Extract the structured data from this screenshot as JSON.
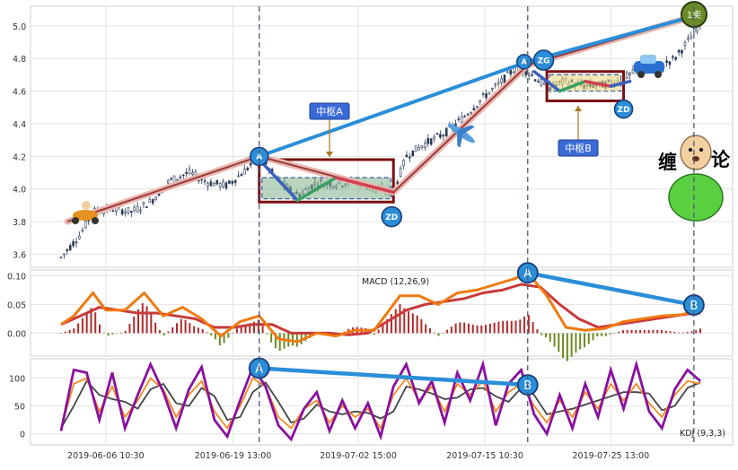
{
  "chart_data": {
    "type": "candlestick-with-indicators",
    "x_ticks": [
      "2019-06-06 10:30",
      "2019-06-19 13:00",
      "2019-07-02 15:00",
      "2019-07-15 10:30",
      "2019-07-25 13:00"
    ],
    "price_panel": {
      "ylim": [
        3.52,
        5.12
      ],
      "yticks": [
        "3.6",
        "3.8",
        "4.0",
        "4.2",
        "4.4",
        "4.6",
        "4.8",
        "5.0"
      ],
      "price_path": [
        [
          0,
          3.58
        ],
        [
          0.03,
          3.72
        ],
        [
          0.05,
          3.86
        ],
        [
          0.08,
          3.88
        ],
        [
          0.11,
          3.86
        ],
        [
          0.14,
          3.92
        ],
        [
          0.17,
          4.05
        ],
        [
          0.2,
          4.1
        ],
        [
          0.23,
          4.04
        ],
        [
          0.26,
          4.02
        ],
        [
          0.29,
          4.12
        ],
        [
          0.31,
          4.2
        ],
        [
          0.34,
          4.05
        ],
        [
          0.37,
          3.96
        ],
        [
          0.4,
          4.04
        ],
        [
          0.43,
          4.03
        ],
        [
          0.46,
          4.05
        ],
        [
          0.49,
          4.0
        ],
        [
          0.52,
          3.98
        ],
        [
          0.54,
          4.2
        ],
        [
          0.57,
          4.28
        ],
        [
          0.6,
          4.34
        ],
        [
          0.63,
          4.44
        ],
        [
          0.66,
          4.56
        ],
        [
          0.69,
          4.66
        ],
        [
          0.71,
          4.74
        ],
        [
          0.73,
          4.72
        ],
        [
          0.76,
          4.62
        ],
        [
          0.79,
          4.66
        ],
        [
          0.82,
          4.63
        ],
        [
          0.85,
          4.64
        ],
        [
          0.87,
          4.66
        ],
        [
          0.9,
          4.72
        ],
        [
          0.93,
          4.74
        ],
        [
          0.96,
          4.8
        ],
        [
          0.98,
          4.9
        ],
        [
          1.0,
          5.02
        ]
      ],
      "trend_line": [
        [
          0.01,
          3.8
        ],
        [
          0.31,
          4.2
        ],
        [
          0.52,
          3.98
        ],
        [
          0.73,
          4.76
        ],
        [
          1.0,
          5.07
        ]
      ],
      "upper_line": [
        [
          0.31,
          4.2
        ],
        [
          0.73,
          4.78
        ],
        [
          1.0,
          5.07
        ]
      ],
      "strokes": [
        [
          [
            0.31,
            4.18
          ],
          [
            0.37,
            3.93
          ],
          [
            0.43,
            4.07
          ],
          [
            0.52,
            3.98
          ]
        ],
        [
          [
            0.74,
            4.72
          ],
          [
            0.78,
            4.6
          ],
          [
            0.82,
            4.66
          ],
          [
            0.86,
            4.63
          ],
          [
            0.89,
            4.66
          ]
        ]
      ],
      "zone_a": {
        "x": [
          0.31,
          0.52
        ],
        "y": [
          3.94,
          4.07
        ],
        "outer_y": [
          3.92,
          4.18
        ]
      },
      "zone_b": {
        "x": [
          0.76,
          0.88
        ],
        "y": [
          4.6,
          4.7
        ],
        "outer_y": [
          4.54,
          4.72
        ]
      },
      "annotations": {
        "zhongshu_a": "中枢A",
        "zhongshu_b": "中枢B",
        "zd": "ZD",
        "zg": "ZG",
        "a": "A",
        "sell": "1卖",
        "chan_left": "缠",
        "chan_right": "论"
      }
    },
    "macd_panel": {
      "label": "MACD (12,26,9)",
      "ylim": [
        -0.04,
        0.11
      ],
      "yticks": [
        "0.10",
        "0.05",
        "0.00"
      ],
      "dif": [
        [
          0,
          0.015
        ],
        [
          0.02,
          0.03
        ],
        [
          0.05,
          0.07
        ],
        [
          0.07,
          0.04
        ],
        [
          0.1,
          0.04
        ],
        [
          0.13,
          0.07
        ],
        [
          0.16,
          0.03
        ],
        [
          0.19,
          0.045
        ],
        [
          0.22,
          0.025
        ],
        [
          0.25,
          -0.005
        ],
        [
          0.28,
          0.02
        ],
        [
          0.31,
          0.03
        ],
        [
          0.34,
          -0.01
        ],
        [
          0.37,
          -0.015
        ],
        [
          0.4,
          0.0
        ],
        [
          0.43,
          -0.005
        ],
        [
          0.46,
          0.005
        ],
        [
          0.49,
          0.005
        ],
        [
          0.53,
          0.065
        ],
        [
          0.56,
          0.065
        ],
        [
          0.59,
          0.05
        ],
        [
          0.62,
          0.07
        ],
        [
          0.65,
          0.075
        ],
        [
          0.68,
          0.085
        ],
        [
          0.71,
          0.095
        ],
        [
          0.73,
          0.105
        ],
        [
          0.76,
          0.065
        ],
        [
          0.79,
          0.01
        ],
        [
          0.82,
          0.005
        ],
        [
          0.85,
          0.008
        ],
        [
          0.88,
          0.02
        ],
        [
          0.91,
          0.025
        ],
        [
          0.94,
          0.03
        ],
        [
          0.97,
          0.032
        ],
        [
          1.0,
          0.04
        ]
      ],
      "dea": [
        [
          0,
          0.015
        ],
        [
          0.03,
          0.03
        ],
        [
          0.06,
          0.045
        ],
        [
          0.09,
          0.04
        ],
        [
          0.12,
          0.035
        ],
        [
          0.15,
          0.035
        ],
        [
          0.18,
          0.03
        ],
        [
          0.21,
          0.025
        ],
        [
          0.24,
          0.01
        ],
        [
          0.27,
          0.01
        ],
        [
          0.3,
          0.015
        ],
        [
          0.33,
          0.015
        ],
        [
          0.36,
          0.0
        ],
        [
          0.39,
          0.0
        ],
        [
          0.42,
          0.0
        ],
        [
          0.45,
          -0.003
        ],
        [
          0.48,
          0.0
        ],
        [
          0.51,
          0.02
        ],
        [
          0.54,
          0.04
        ],
        [
          0.57,
          0.05
        ],
        [
          0.6,
          0.055
        ],
        [
          0.63,
          0.06
        ],
        [
          0.66,
          0.07
        ],
        [
          0.69,
          0.075
        ],
        [
          0.72,
          0.085
        ],
        [
          0.75,
          0.08
        ],
        [
          0.78,
          0.05
        ],
        [
          0.81,
          0.025
        ],
        [
          0.84,
          0.01
        ],
        [
          0.87,
          0.015
        ],
        [
          0.9,
          0.02
        ],
        [
          0.93,
          0.025
        ],
        [
          0.96,
          0.03
        ],
        [
          0.99,
          0.035
        ],
        [
          1.0,
          0.035
        ]
      ],
      "divergence": {
        "a_label": "A",
        "b_label": "B",
        "a": [
          0.73,
          0.105
        ],
        "b": [
          0.99,
          0.049
        ]
      }
    },
    "kdj_panel": {
      "label": "KDJ (9,3,3)",
      "ylim": [
        -20,
        135
      ],
      "yticks": [
        "100",
        "50",
        "0"
      ],
      "k": [
        [
          0,
          10
        ],
        [
          0.02,
          90
        ],
        [
          0.04,
          100
        ],
        [
          0.06,
          40
        ],
        [
          0.08,
          85
        ],
        [
          0.1,
          30
        ],
        [
          0.12,
          60
        ],
        [
          0.14,
          100
        ],
        [
          0.16,
          80
        ],
        [
          0.18,
          30
        ],
        [
          0.2,
          70
        ],
        [
          0.22,
          95
        ],
        [
          0.24,
          40
        ],
        [
          0.26,
          10
        ],
        [
          0.28,
          50
        ],
        [
          0.3,
          100
        ],
        [
          0.32,
          85
        ],
        [
          0.34,
          30
        ],
        [
          0.36,
          10
        ],
        [
          0.38,
          45
        ],
        [
          0.4,
          60
        ],
        [
          0.42,
          20
        ],
        [
          0.44,
          50
        ],
        [
          0.46,
          30
        ],
        [
          0.48,
          45
        ],
        [
          0.5,
          10
        ],
        [
          0.52,
          70
        ],
        [
          0.54,
          100
        ],
        [
          0.56,
          60
        ],
        [
          0.58,
          85
        ],
        [
          0.6,
          40
        ],
        [
          0.62,
          90
        ],
        [
          0.64,
          70
        ],
        [
          0.66,
          95
        ],
        [
          0.68,
          40
        ],
        [
          0.7,
          75
        ],
        [
          0.72,
          90
        ],
        [
          0.74,
          50
        ],
        [
          0.76,
          20
        ],
        [
          0.78,
          60
        ],
        [
          0.8,
          30
        ],
        [
          0.82,
          75
        ],
        [
          0.84,
          45
        ],
        [
          0.86,
          90
        ],
        [
          0.88,
          60
        ],
        [
          0.9,
          90
        ],
        [
          0.92,
          55
        ],
        [
          0.94,
          30
        ],
        [
          0.96,
          70
        ],
        [
          0.98,
          95
        ],
        [
          1.0,
          90
        ]
      ],
      "j": [
        [
          0,
          5
        ],
        [
          0.02,
          115
        ],
        [
          0.04,
          110
        ],
        [
          0.06,
          25
        ],
        [
          0.08,
          110
        ],
        [
          0.1,
          10
        ],
        [
          0.12,
          70
        ],
        [
          0.14,
          125
        ],
        [
          0.16,
          75
        ],
        [
          0.18,
          10
        ],
        [
          0.2,
          80
        ],
        [
          0.22,
          120
        ],
        [
          0.24,
          25
        ],
        [
          0.26,
          -5
        ],
        [
          0.28,
          60
        ],
        [
          0.3,
          120
        ],
        [
          0.32,
          85
        ],
        [
          0.34,
          15
        ],
        [
          0.36,
          -10
        ],
        [
          0.38,
          45
        ],
        [
          0.4,
          75
        ],
        [
          0.42,
          5
        ],
        [
          0.44,
          60
        ],
        [
          0.46,
          10
        ],
        [
          0.48,
          55
        ],
        [
          0.5,
          -5
        ],
        [
          0.52,
          85
        ],
        [
          0.54,
          125
        ],
        [
          0.56,
          55
        ],
        [
          0.58,
          95
        ],
        [
          0.6,
          20
        ],
        [
          0.62,
          110
        ],
        [
          0.64,
          60
        ],
        [
          0.66,
          125
        ],
        [
          0.68,
          15
        ],
        [
          0.7,
          90
        ],
        [
          0.72,
          115
        ],
        [
          0.74,
          35
        ],
        [
          0.76,
          0
        ],
        [
          0.78,
          70
        ],
        [
          0.8,
          10
        ],
        [
          0.82,
          90
        ],
        [
          0.84,
          30
        ],
        [
          0.86,
          115
        ],
        [
          0.88,
          45
        ],
        [
          0.9,
          125
        ],
        [
          0.92,
          40
        ],
        [
          0.94,
          10
        ],
        [
          0.96,
          80
        ],
        [
          0.98,
          115
        ],
        [
          1.0,
          95
        ]
      ],
      "divergence": {
        "a_label": "A",
        "b_label": "B",
        "a": [
          0.31,
          118
        ],
        "b": [
          0.73,
          88
        ]
      }
    }
  }
}
